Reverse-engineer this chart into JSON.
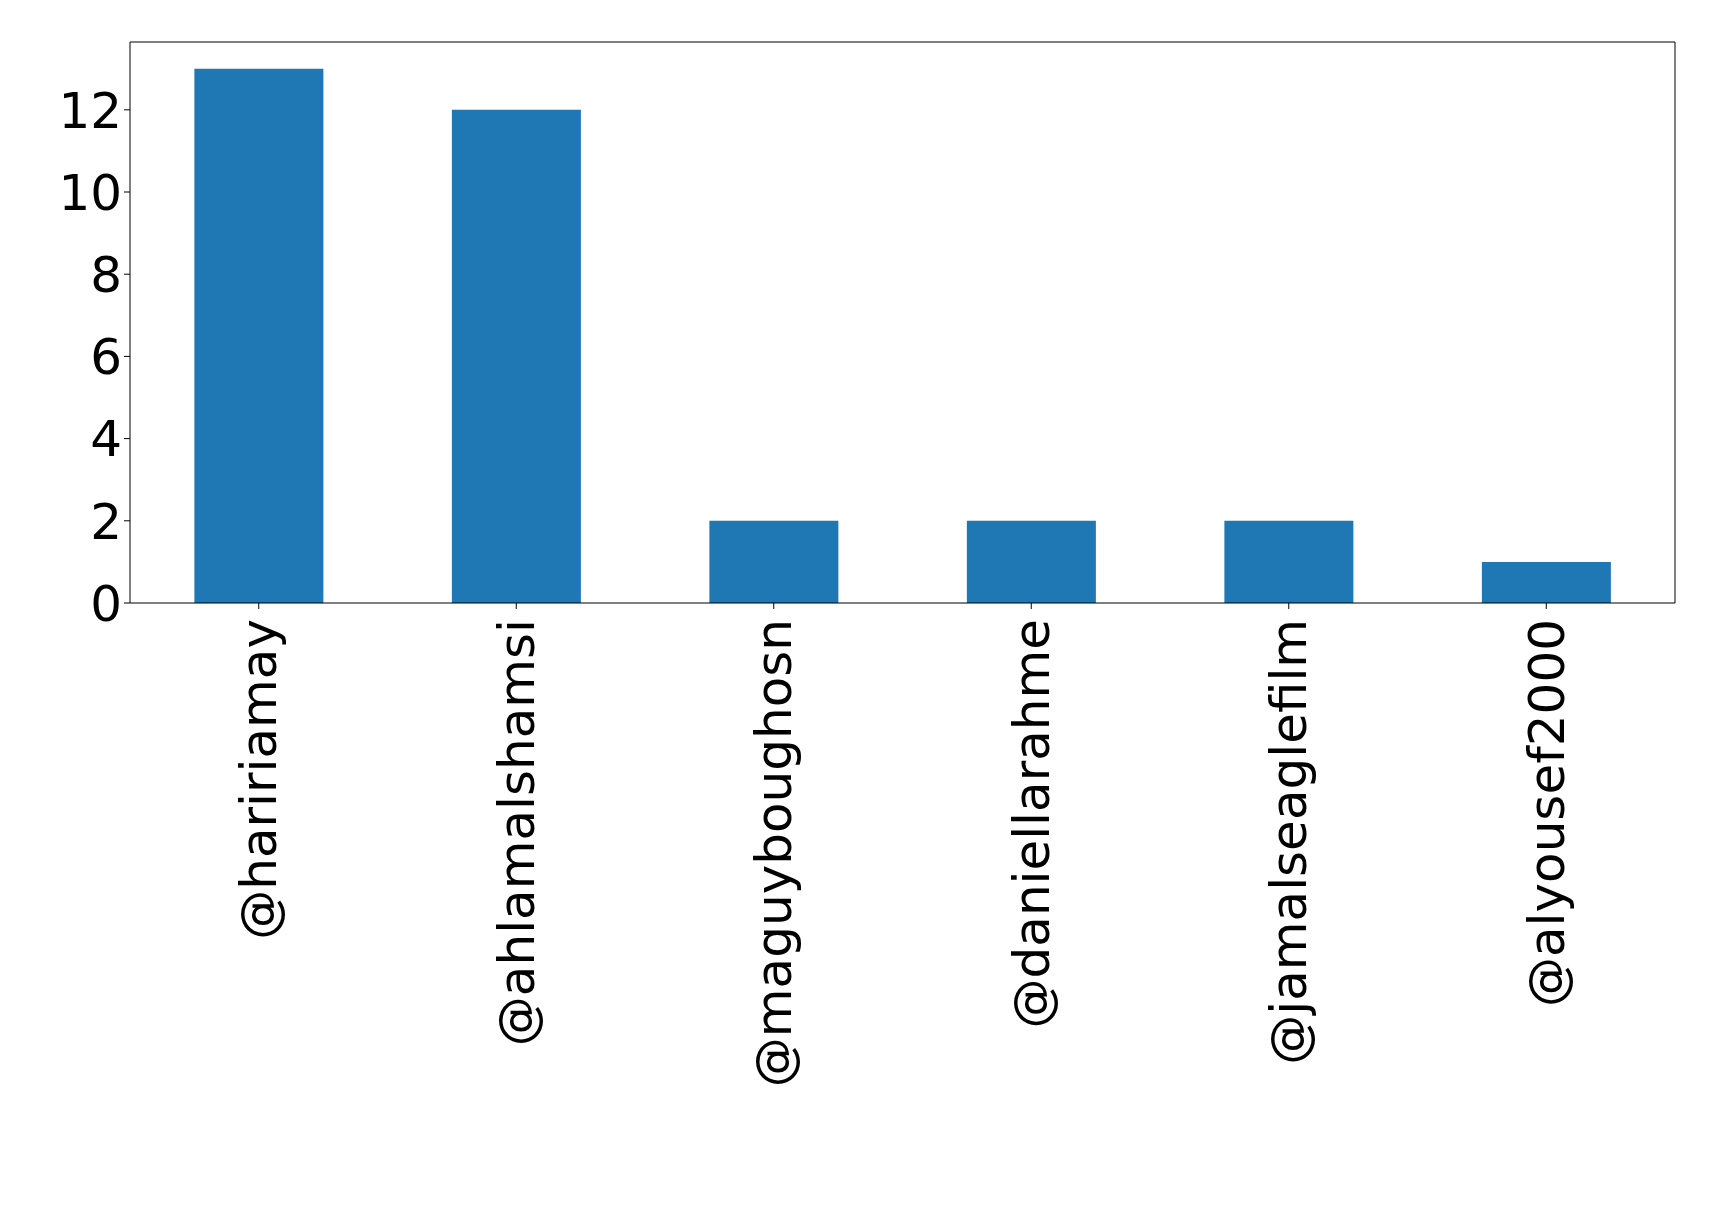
{
  "chart_data": {
    "type": "bar",
    "categories": [
      "@haririamay",
      "@ahlamalshamsi",
      "@maguyboughosn",
      "@daniellarahme",
      "@jamalseaglefilm",
      "@alyousef2000"
    ],
    "values": [
      13,
      12,
      2,
      2,
      2,
      1
    ],
    "color": "#1f77b4",
    "ylim": [
      0,
      13.65
    ],
    "yticks": [
      0,
      2,
      4,
      6,
      8,
      10,
      12
    ],
    "grid": false,
    "legend": false
  }
}
